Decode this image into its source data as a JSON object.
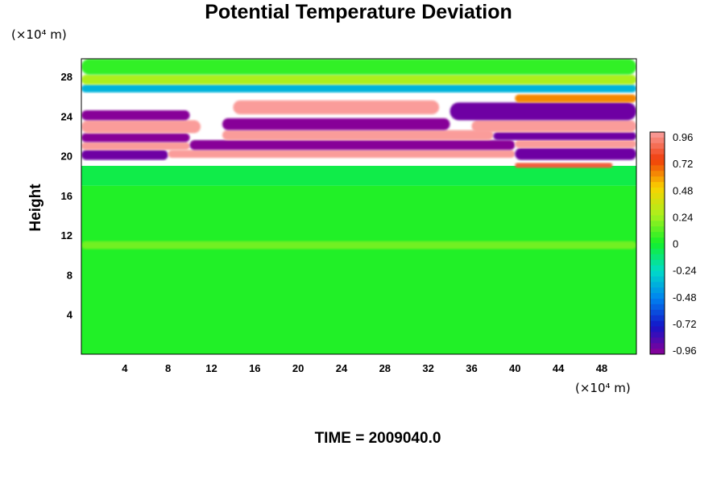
{
  "chart_data": {
    "type": "heatmap",
    "title": "Potential Temperature Deviation",
    "ylabel": "Height",
    "x_unit_label": "(×10⁴ m)",
    "y_unit_label": "(×10⁴ m)",
    "x_ticks": [
      "4",
      "8",
      "12",
      "16",
      "20",
      "24",
      "28",
      "32",
      "36",
      "40",
      "44",
      "48"
    ],
    "x_tick_values": [
      4,
      8,
      12,
      16,
      20,
      24,
      28,
      32,
      36,
      40,
      44,
      48
    ],
    "y_ticks": [
      "4",
      "8",
      "12",
      "16",
      "20",
      "24",
      "28"
    ],
    "y_tick_values": [
      4,
      8,
      12,
      16,
      20,
      24,
      28
    ],
    "xlim": [
      0,
      51.2
    ],
    "ylim": [
      0,
      29.8
    ],
    "colorbar": {
      "tick_labels": [
        "0.96",
        "0.72",
        "0.48",
        "0.24",
        "0",
        "-0.24",
        "-0.48",
        "-0.72",
        "-0.96"
      ],
      "tick_values": [
        0.96,
        0.72,
        0.48,
        0.24,
        0,
        -0.24,
        -0.48,
        -0.72,
        -0.96
      ],
      "range": [
        -0.96,
        0.96
      ]
    },
    "bands": [
      {
        "value": 0.02,
        "x_start": 0,
        "x_end": 51.2,
        "y_start": 0,
        "y_end": 17
      },
      {
        "value": -0.05,
        "x_start": 0,
        "x_end": 51.2,
        "y_start": 17,
        "y_end": 19
      },
      {
        "value": 0.15,
        "x_start": 0,
        "x_end": 51.2,
        "y_start": 10.6,
        "y_end": 11.4
      },
      {
        "value": -0.9,
        "x_start": 0,
        "x_end": 8,
        "y_start": 19.6,
        "y_end": 20.6
      },
      {
        "value": 0.95,
        "x_start": 8,
        "x_end": 40,
        "y_start": 19.8,
        "y_end": 20.6
      },
      {
        "value": -0.9,
        "x_start": 40,
        "x_end": 51.2,
        "y_start": 19.6,
        "y_end": 20.8
      },
      {
        "value": 0.95,
        "x_start": 0,
        "x_end": 10,
        "y_start": 20.6,
        "y_end": 21.4
      },
      {
        "value": -0.95,
        "x_start": 10,
        "x_end": 40,
        "y_start": 20.6,
        "y_end": 21.6
      },
      {
        "value": 0.95,
        "x_start": 40,
        "x_end": 51.2,
        "y_start": 20.8,
        "y_end": 21.6
      },
      {
        "value": -0.95,
        "x_start": 0,
        "x_end": 10,
        "y_start": 21.4,
        "y_end": 22.3
      },
      {
        "value": 0.95,
        "x_start": 13,
        "x_end": 38,
        "y_start": 21.6,
        "y_end": 22.6
      },
      {
        "value": -0.9,
        "x_start": 38,
        "x_end": 51.2,
        "y_start": 21.6,
        "y_end": 22.4
      },
      {
        "value": 0.95,
        "x_start": 0,
        "x_end": 11,
        "y_start": 22.3,
        "y_end": 23.6
      },
      {
        "value": -0.95,
        "x_start": 13,
        "x_end": 34,
        "y_start": 22.6,
        "y_end": 23.8
      },
      {
        "value": 0.95,
        "x_start": 36,
        "x_end": 51.2,
        "y_start": 22.4,
        "y_end": 23.6
      },
      {
        "value": -0.95,
        "x_start": 0,
        "x_end": 10,
        "y_start": 23.6,
        "y_end": 24.6
      },
      {
        "value": -0.9,
        "x_start": 34,
        "x_end": 51.2,
        "y_start": 23.6,
        "y_end": 25.4
      },
      {
        "value": 0.95,
        "x_start": 14,
        "x_end": 33,
        "y_start": 24.2,
        "y_end": 25.6
      },
      {
        "value": 0.6,
        "x_start": 40,
        "x_end": 51.2,
        "y_start": 25.4,
        "y_end": 26.2
      },
      {
        "value": -0.35,
        "x_start": 0,
        "x_end": 51.2,
        "y_start": 26.4,
        "y_end": 27.2
      },
      {
        "value": 0.25,
        "x_start": 0,
        "x_end": 51.2,
        "y_start": 27.2,
        "y_end": 28.2
      },
      {
        "value": 0.05,
        "x_start": 0,
        "x_end": 51.2,
        "y_start": 28.2,
        "y_end": 29.8
      },
      {
        "value": 0.8,
        "x_start": 40,
        "x_end": 49,
        "y_start": 18.8,
        "y_end": 19.3
      }
    ]
  },
  "footer": {
    "time_label": "TIME = 2009040.0"
  }
}
